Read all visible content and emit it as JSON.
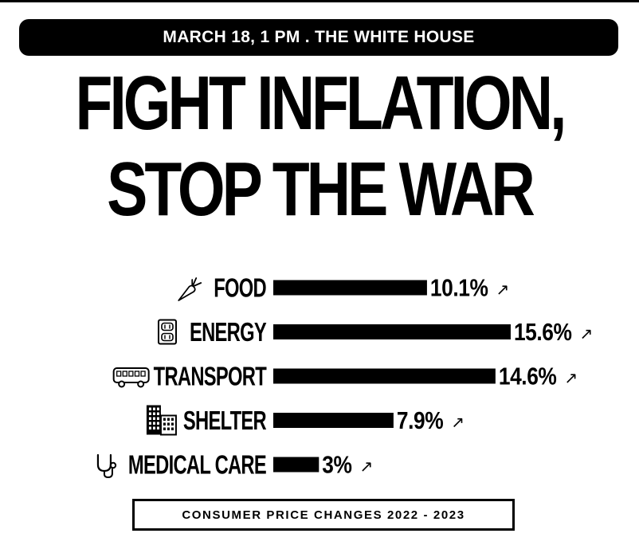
{
  "event_banner": "MARCH 18, 1 PM . THE WHITE HOUSE",
  "headline": {
    "line1": "FIGHT INFLATION,",
    "line2": "STOP THE WAR"
  },
  "caption": "CONSUMER PRICE CHANGES 2022 - 2023",
  "colors": {
    "ink": "#000000",
    "background": "#ffffff"
  },
  "chart_data": {
    "type": "bar",
    "orientation": "horizontal",
    "title": "",
    "xlabel": "",
    "ylabel": "",
    "categories": [
      "FOOD",
      "ENERGY",
      "TRANSPORT",
      "SHELTER",
      "MEDICAL CARE"
    ],
    "icons": [
      "carrot-icon",
      "outlet-icon",
      "bus-icon",
      "building-icon",
      "stethoscope-icon"
    ],
    "values": [
      10.1,
      15.6,
      14.6,
      7.9,
      3
    ],
    "labels": [
      "10.1%",
      "15.6%",
      "14.6%",
      "7.9%",
      "3%"
    ],
    "trend_glyph": "↗",
    "grid": false,
    "legend": "none"
  }
}
